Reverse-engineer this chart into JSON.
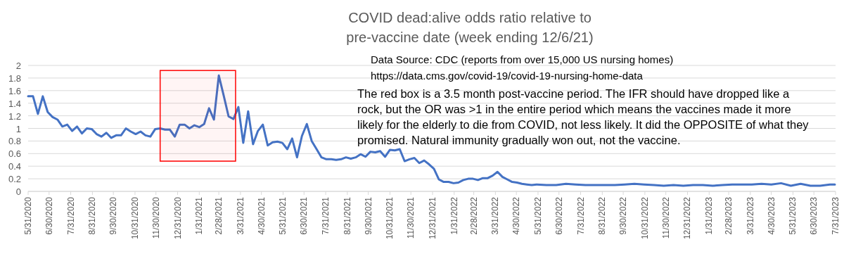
{
  "chart_data": {
    "type": "line",
    "title": "COVID dead:alive odds ratio relative to pre-vaccine date (week ending 12/6/21)",
    "annotations": [
      "Data Source: CDC (reports from over 15,000 US nursing homes)",
      "https://data.cms.gov/covid-19/covid-19-nursing-home-data",
      "The red box is a 3.5 month post-vaccine period. The IFR should have dropped like a rock, but the OR was >1 in the entire period which means the vaccines made it more likely for the elderly to die from COVID, not less likely. It did the OPPOSITE of what they promised. Natural immunity gradually won out, not the vaccine."
    ],
    "x": [
      "2020-05-31",
      "2020-06-07",
      "2020-06-14",
      "2020-06-21",
      "2020-06-28",
      "2020-07-05",
      "2020-07-12",
      "2020-07-19",
      "2020-07-26",
      "2020-08-02",
      "2020-08-09",
      "2020-08-16",
      "2020-08-23",
      "2020-08-30",
      "2020-09-06",
      "2020-09-13",
      "2020-09-20",
      "2020-09-27",
      "2020-10-04",
      "2020-10-11",
      "2020-10-18",
      "2020-10-25",
      "2020-11-01",
      "2020-11-08",
      "2020-11-15",
      "2020-11-22",
      "2020-11-29",
      "2020-12-06",
      "2020-12-13",
      "2020-12-20",
      "2020-12-27",
      "2021-01-03",
      "2021-01-10",
      "2021-01-17",
      "2021-01-24",
      "2021-01-31",
      "2021-02-07",
      "2021-02-14",
      "2021-02-21",
      "2021-02-28",
      "2021-03-07",
      "2021-03-14",
      "2021-03-21",
      "2021-03-28",
      "2021-04-04",
      "2021-04-11",
      "2021-04-18",
      "2021-04-25",
      "2021-05-02",
      "2021-05-09",
      "2021-05-16",
      "2021-05-23",
      "2021-05-30",
      "2021-06-06",
      "2021-06-13",
      "2021-06-20",
      "2021-06-27",
      "2021-07-04",
      "2021-07-11",
      "2021-07-18",
      "2021-07-25",
      "2021-08-01",
      "2021-08-08",
      "2021-08-15",
      "2021-08-22",
      "2021-08-29",
      "2021-09-05",
      "2021-09-12",
      "2021-09-19",
      "2021-09-26",
      "2021-10-03",
      "2021-10-10",
      "2021-10-17",
      "2021-10-24",
      "2021-10-31",
      "2021-11-07",
      "2021-11-14",
      "2021-11-21",
      "2021-11-28",
      "2021-12-05",
      "2021-12-12",
      "2021-12-19",
      "2021-12-26",
      "2022-01-02",
      "2022-01-09",
      "2022-01-16",
      "2022-01-23",
      "2022-01-30",
      "2022-02-06",
      "2022-02-13",
      "2022-02-20",
      "2022-02-27",
      "2022-03-06",
      "2022-03-13",
      "2022-03-20",
      "2022-03-27",
      "2022-04-03",
      "2022-04-10",
      "2022-04-17",
      "2022-04-24",
      "2022-05-01",
      "2022-05-08",
      "2022-05-15",
      "2022-05-22",
      "2022-05-29",
      "2022-06-12",
      "2022-06-26",
      "2022-07-10",
      "2022-07-24",
      "2022-08-07",
      "2022-08-21",
      "2022-09-04",
      "2022-09-18",
      "2022-10-02",
      "2022-10-16",
      "2022-10-30",
      "2022-11-13",
      "2022-11-27",
      "2022-12-11",
      "2022-12-25",
      "2023-01-08",
      "2023-01-22",
      "2023-02-05",
      "2023-02-19",
      "2023-03-05",
      "2023-03-19",
      "2023-04-02",
      "2023-04-16",
      "2023-04-30",
      "2023-05-14",
      "2023-05-28",
      "2023-06-11",
      "2023-06-25",
      "2023-07-09",
      "2023-07-23",
      "2023-07-30"
    ],
    "series": [
      {
        "color": "#4472c4",
        "values": [
          1.51,
          1.51,
          1.23,
          1.51,
          1.26,
          1.18,
          1.14,
          1.03,
          1.06,
          0.96,
          1.03,
          0.92,
          1.0,
          0.99,
          0.91,
          0.87,
          0.93,
          0.85,
          0.89,
          0.89,
          1.0,
          0.95,
          0.91,
          0.95,
          0.89,
          0.87,
          0.99,
          1.0,
          0.98,
          0.98,
          0.87,
          1.06,
          1.06,
          1.0,
          1.05,
          1.02,
          1.07,
          1.32,
          1.14,
          1.84,
          1.52,
          1.19,
          1.15,
          1.34,
          0.77,
          1.27,
          0.75,
          0.96,
          1.06,
          0.73,
          0.78,
          0.79,
          0.77,
          0.67,
          0.84,
          0.54,
          0.88,
          1.07,
          0.8,
          0.67,
          0.54,
          0.51,
          0.51,
          0.5,
          0.51,
          0.54,
          0.52,
          0.54,
          0.59,
          0.55,
          0.63,
          0.62,
          0.64,
          0.55,
          0.66,
          0.65,
          0.67,
          0.48,
          0.51,
          0.53,
          0.45,
          0.49,
          0.43,
          0.36,
          0.19,
          0.15,
          0.15,
          0.13,
          0.14,
          0.18,
          0.2,
          0.2,
          0.18,
          0.21,
          0.21,
          0.25,
          0.31,
          0.23,
          0.19,
          0.15,
          0.14,
          0.12,
          0.11,
          0.1,
          0.11,
          0.1,
          0.1,
          0.12,
          0.11,
          0.1,
          0.1,
          0.1,
          0.1,
          0.11,
          0.12,
          0.11,
          0.1,
          0.09,
          0.1,
          0.09,
          0.1,
          0.1,
          0.09,
          0.1,
          0.11,
          0.11,
          0.11,
          0.12,
          0.11,
          0.13,
          0.09,
          0.12,
          0.09,
          0.09,
          0.11,
          0.11
        ]
      }
    ],
    "xlim": [
      "2020-05-31",
      "2023-07-31"
    ],
    "xticks": [
      {
        "value": "2020-05-31",
        "label": "5/31/2020"
      },
      {
        "value": "2020-06-30",
        "label": "6/30/2020"
      },
      {
        "value": "2020-07-31",
        "label": "7/31/2020"
      },
      {
        "value": "2020-08-31",
        "label": "8/31/2020"
      },
      {
        "value": "2020-09-30",
        "label": "9/30/2020"
      },
      {
        "value": "2020-10-31",
        "label": "10/31/2020"
      },
      {
        "value": "2020-11-30",
        "label": "11/30/2020"
      },
      {
        "value": "2020-12-31",
        "label": "12/31/2020"
      },
      {
        "value": "2021-01-31",
        "label": "1/31/2021"
      },
      {
        "value": "2021-02-28",
        "label": "2/28/2021"
      },
      {
        "value": "2021-03-31",
        "label": "3/31/2021"
      },
      {
        "value": "2021-04-30",
        "label": "4/30/2021"
      },
      {
        "value": "2021-05-31",
        "label": "5/31/2021"
      },
      {
        "value": "2021-06-30",
        "label": "6/30/2021"
      },
      {
        "value": "2021-07-31",
        "label": "7/31/2021"
      },
      {
        "value": "2021-08-31",
        "label": "8/31/2021"
      },
      {
        "value": "2021-09-30",
        "label": "9/30/2021"
      },
      {
        "value": "2021-10-31",
        "label": "10/31/2021"
      },
      {
        "value": "2021-11-30",
        "label": "11/30/2021"
      },
      {
        "value": "2021-12-31",
        "label": "12/31/2021"
      },
      {
        "value": "2022-01-31",
        "label": "1/31/2022"
      },
      {
        "value": "2022-02-28",
        "label": "2/28/2022"
      },
      {
        "value": "2022-03-31",
        "label": "3/31/2022"
      },
      {
        "value": "2022-04-30",
        "label": "4/30/2022"
      },
      {
        "value": "2022-05-31",
        "label": "5/31/2022"
      },
      {
        "value": "2022-06-30",
        "label": "6/30/2022"
      },
      {
        "value": "2022-07-31",
        "label": "7/31/2022"
      },
      {
        "value": "2022-08-31",
        "label": "8/31/2022"
      },
      {
        "value": "2022-09-30",
        "label": "9/30/2022"
      },
      {
        "value": "2022-10-31",
        "label": "10/31/2022"
      },
      {
        "value": "2022-11-30",
        "label": "11/30/2022"
      },
      {
        "value": "2022-12-31",
        "label": "12/31/2022"
      },
      {
        "value": "2023-01-31",
        "label": "1/31/2023"
      },
      {
        "value": "2023-02-28",
        "label": "2/28/2023"
      },
      {
        "value": "2023-03-31",
        "label": "3/31/2023"
      },
      {
        "value": "2023-04-30",
        "label": "4/30/2023"
      },
      {
        "value": "2023-05-31",
        "label": "5/31/2023"
      },
      {
        "value": "2023-06-30",
        "label": "6/30/2023"
      },
      {
        "value": "2023-07-31",
        "label": "7/31/2023"
      }
    ],
    "ylim": [
      0,
      2
    ],
    "yticks": [
      0,
      0.2,
      0.4,
      0.6,
      0.8,
      1,
      1.2,
      1.4,
      1.6,
      1.8,
      2
    ],
    "grid": "y",
    "marker": "none",
    "line_style": "solid",
    "bands": [
      {
        "axis": "x",
        "from": "2020-12-06",
        "to": "2021-03-24",
        "color": "#ff0000"
      }
    ]
  }
}
